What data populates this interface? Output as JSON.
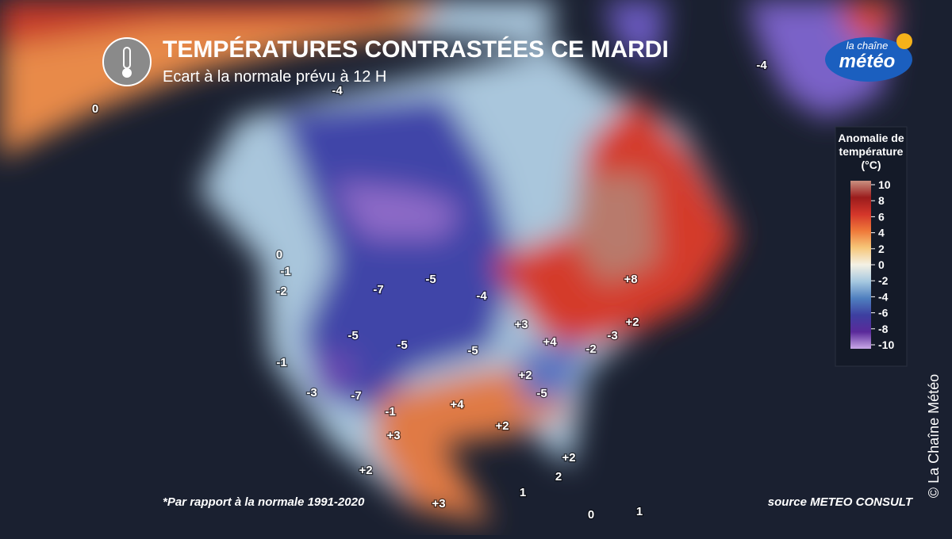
{
  "header": {
    "title": "TEMPÉRATURES CONTRASTÉES CE MARDI",
    "subtitle": "Ecart à la normale prévu à 12 H"
  },
  "logo": {
    "line1": "la chaîne",
    "line2": "météo"
  },
  "legend": {
    "title": [
      "Anomalie de",
      "température",
      "(°C)"
    ],
    "ticks": [
      10,
      8,
      6,
      4,
      2,
      0,
      -2,
      -4,
      -6,
      -8,
      -10
    ]
  },
  "map_labels": [
    "-4",
    "0",
    "-4",
    "0",
    "-1",
    "-2",
    "-7",
    "-5",
    "-4",
    "+8",
    "+3",
    "+2",
    "-3",
    "-5",
    "-5",
    "+4",
    "-2",
    "-5",
    "-1",
    "+2",
    "-5",
    "-3",
    "-7",
    "-1",
    "+4",
    "+2",
    "+3",
    "+2",
    "+2",
    "2",
    "1",
    "+3",
    "0",
    "1"
  ],
  "footer": {
    "note": "*Par rapport à la normale 1991-2020",
    "source": "source METEO CONSULT",
    "copyright": "© La Chaîne Météo"
  }
}
